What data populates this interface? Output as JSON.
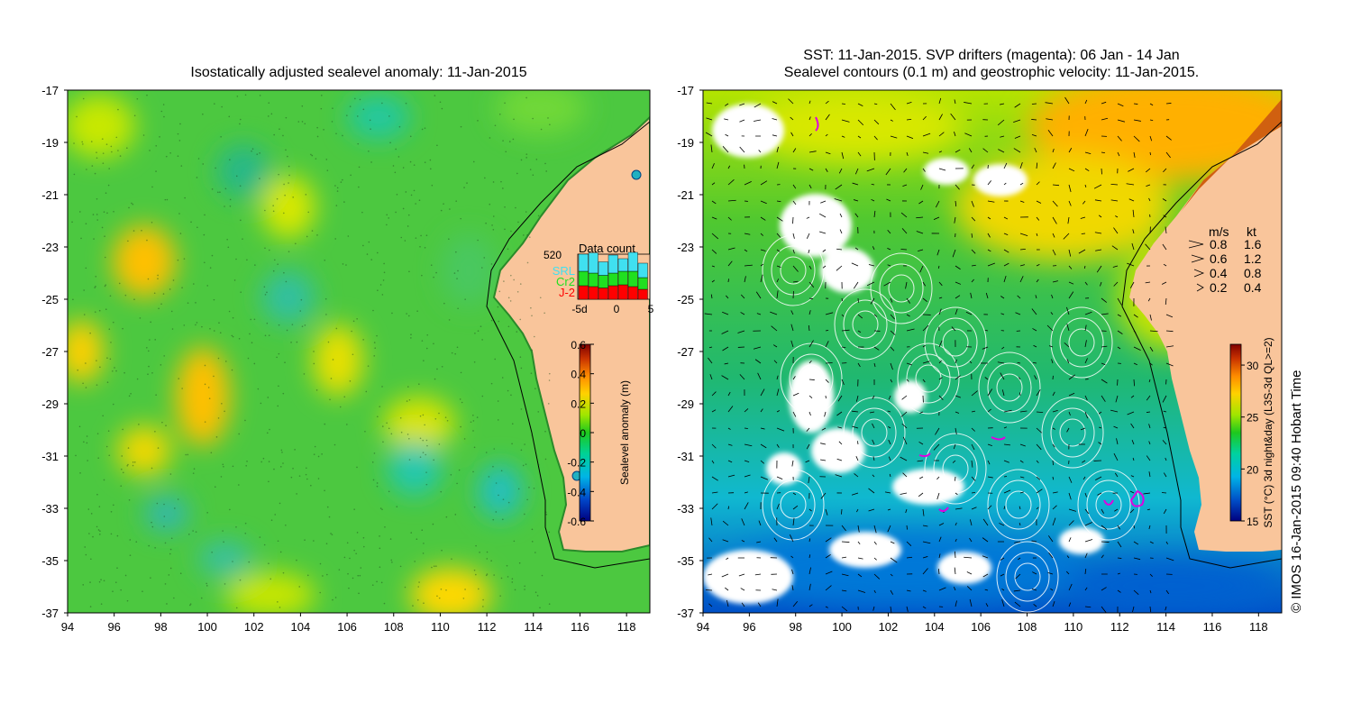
{
  "left_panel": {
    "title": "Isostatically adjusted sealevel anomaly: 11-Jan-2015",
    "x_ticks": [
      "94",
      "96",
      "98",
      "100",
      "102",
      "104",
      "106",
      "108",
      "110",
      "112",
      "114",
      "116",
      "118"
    ],
    "y_ticks": [
      "-17",
      "-19",
      "-21",
      "-23",
      "-25",
      "-27",
      "-29",
      "-31",
      "-33",
      "-35",
      "-37"
    ],
    "x_range": [
      94,
      119
    ],
    "y_range": [
      -37,
      -17
    ],
    "colorbar": {
      "label": "Sealevel anomaly (m)",
      "ticks": [
        "0.6",
        "0.4",
        "0.2",
        "0",
        "-0.2",
        "-0.4",
        "-0.6"
      ],
      "range": [
        -0.6,
        0.6
      ],
      "colors": [
        "#00007f",
        "#0046c8",
        "#00b4e6",
        "#00d296",
        "#1ec81e",
        "#a0e600",
        "#ffd200",
        "#ff8c00",
        "#c83200",
        "#7f0000"
      ]
    },
    "data_count": {
      "title": "Data count",
      "max_label": "520",
      "legend": [
        {
          "name": "SRL",
          "color": "#40e0f0"
        },
        {
          "name": "Cr2",
          "color": "#20e020"
        },
        {
          "name": "J-2",
          "color": "#ff0000"
        }
      ],
      "x_labels": [
        "-5d",
        "0",
        "5"
      ],
      "stacks": [
        [
          0.3,
          0.32,
          0.38
        ],
        [
          0.28,
          0.3,
          0.45
        ],
        [
          0.25,
          0.28,
          0.3
        ],
        [
          0.3,
          0.28,
          0.4
        ],
        [
          0.32,
          0.3,
          0.28
        ],
        [
          0.28,
          0.34,
          0.42
        ],
        [
          0.22,
          0.26,
          0.32
        ]
      ]
    }
  },
  "right_panel": {
    "title_line1": "SST: 11-Jan-2015. SVP drifters (magenta): 06 Jan - 14 Jan",
    "title_line2": "Sealevel contours (0.1 m) and geostrophic velocity: 11-Jan-2015.",
    "x_ticks": [
      "94",
      "96",
      "98",
      "100",
      "102",
      "104",
      "106",
      "108",
      "110",
      "112",
      "114",
      "116",
      "118"
    ],
    "y_ticks": [
      "-17",
      "-19",
      "-21",
      "-23",
      "-25",
      "-27",
      "-29",
      "-31",
      "-33",
      "-35",
      "-37"
    ],
    "colorbar": {
      "label": "SST (°C) 3d night&day (L3S-3d QL>=2)",
      "ticks": [
        "30",
        "25",
        "20",
        "15"
      ],
      "range": [
        15,
        32
      ],
      "colors": [
        "#00007f",
        "#0050c8",
        "#00b4e6",
        "#00d2a0",
        "#1ec81e",
        "#a0e600",
        "#ffd200",
        "#ff8c00",
        "#c83200",
        "#7f0000"
      ]
    },
    "velocity_legend": {
      "header_ms": "m/s",
      "header_kt": "kt",
      "rows": [
        {
          "ms": "0.8",
          "kt": "1.6"
        },
        {
          "ms": "0.6",
          "kt": "1.2"
        },
        {
          "ms": "0.4",
          "kt": "0.8"
        },
        {
          "ms": "0.2",
          "kt": "0.4"
        }
      ]
    }
  },
  "credit": "© IMOS 16-Jan-2015 09:40 Hobart Time",
  "colors": {
    "land": "#f9c59b",
    "ocean_green": "#3cc83c",
    "coast_line": "#000000"
  }
}
